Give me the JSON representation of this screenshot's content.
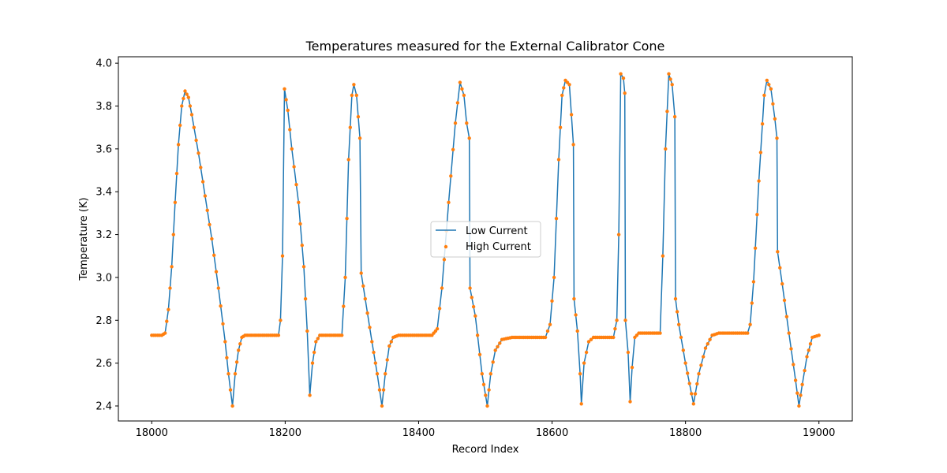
{
  "chart_data": {
    "type": "line",
    "title": "Temperatures measured for the External Calibrator Cone",
    "xlabel": "Record Index",
    "ylabel": "Temperature (K)",
    "xlim": [
      17950,
      19050
    ],
    "ylim": [
      2.33,
      4.03
    ],
    "xticks": [
      "18000",
      "18200",
      "18400",
      "18600",
      "18800",
      "19000"
    ],
    "yticks": [
      "2.4",
      "2.6",
      "2.8",
      "3.0",
      "3.2",
      "3.4",
      "3.6",
      "3.8",
      "4.0"
    ],
    "legend_position": "center",
    "grid": false,
    "series": [
      {
        "name": "Low Current",
        "style": "line",
        "color": "#1f77b4",
        "points": [
          [
            18000,
            2.73
          ],
          [
            18015,
            2.73
          ],
          [
            18020,
            2.74
          ],
          [
            18025,
            2.85
          ],
          [
            18030,
            3.05
          ],
          [
            18035,
            3.35
          ],
          [
            18040,
            3.62
          ],
          [
            18045,
            3.8
          ],
          [
            18050,
            3.87
          ],
          [
            18055,
            3.84
          ],
          [
            18060,
            3.76
          ],
          [
            18070,
            3.58
          ],
          [
            18080,
            3.38
          ],
          [
            18090,
            3.18
          ],
          [
            18100,
            2.95
          ],
          [
            18110,
            2.7
          ],
          [
            18115,
            2.55
          ],
          [
            18121,
            2.4
          ],
          [
            18125,
            2.55
          ],
          [
            18130,
            2.66
          ],
          [
            18135,
            2.72
          ],
          [
            18140,
            2.73
          ],
          [
            18190,
            2.73
          ],
          [
            18193,
            2.8
          ],
          [
            18196,
            3.1
          ],
          [
            18199,
            3.88
          ],
          [
            18204,
            3.78
          ],
          [
            18210,
            3.6
          ],
          [
            18220,
            3.35
          ],
          [
            18228,
            3.05
          ],
          [
            18233,
            2.75
          ],
          [
            18237,
            2.45
          ],
          [
            18241,
            2.6
          ],
          [
            18246,
            2.7
          ],
          [
            18252,
            2.73
          ],
          [
            18285,
            2.73
          ],
          [
            18290,
            3.0
          ],
          [
            18295,
            3.55
          ],
          [
            18300,
            3.85
          ],
          [
            18303,
            3.9
          ],
          [
            18307,
            3.85
          ],
          [
            18312,
            3.65
          ],
          [
            18314,
            3.02
          ],
          [
            18320,
            2.9
          ],
          [
            18330,
            2.7
          ],
          [
            18338,
            2.55
          ],
          [
            18345,
            2.4
          ],
          [
            18350,
            2.55
          ],
          [
            18356,
            2.68
          ],
          [
            18362,
            2.72
          ],
          [
            18370,
            2.73
          ],
          [
            18420,
            2.73
          ],
          [
            18428,
            2.76
          ],
          [
            18435,
            2.95
          ],
          [
            18445,
            3.35
          ],
          [
            18455,
            3.72
          ],
          [
            18462,
            3.91
          ],
          [
            18468,
            3.85
          ],
          [
            18472,
            3.72
          ],
          [
            18476,
            3.65
          ],
          [
            18477,
            2.95
          ],
          [
            18485,
            2.82
          ],
          [
            18495,
            2.55
          ],
          [
            18503,
            2.4
          ],
          [
            18508,
            2.55
          ],
          [
            18515,
            2.66
          ],
          [
            18525,
            2.71
          ],
          [
            18540,
            2.72
          ],
          [
            18590,
            2.72
          ],
          [
            18597,
            2.78
          ],
          [
            18603,
            3.0
          ],
          [
            18610,
            3.55
          ],
          [
            18615,
            3.85
          ],
          [
            18620,
            3.92
          ],
          [
            18626,
            3.9
          ],
          [
            18632,
            3.62
          ],
          [
            18633,
            2.9
          ],
          [
            18638,
            2.75
          ],
          [
            18642,
            2.55
          ],
          [
            18644,
            2.41
          ],
          [
            18648,
            2.6
          ],
          [
            18655,
            2.7
          ],
          [
            18662,
            2.72
          ],
          [
            18692,
            2.72
          ],
          [
            18697,
            2.8
          ],
          [
            18700,
            3.2
          ],
          [
            18703,
            3.95
          ],
          [
            18707,
            3.93
          ],
          [
            18709,
            3.86
          ],
          [
            18710,
            2.8
          ],
          [
            18714,
            2.65
          ],
          [
            18717,
            2.42
          ],
          [
            18720,
            2.58
          ],
          [
            18724,
            2.72
          ],
          [
            18730,
            2.74
          ],
          [
            18762,
            2.74
          ],
          [
            18766,
            3.1
          ],
          [
            18770,
            3.6
          ],
          [
            18775,
            3.95
          ],
          [
            18780,
            3.9
          ],
          [
            18784,
            3.75
          ],
          [
            18785,
            2.9
          ],
          [
            18790,
            2.78
          ],
          [
            18800,
            2.6
          ],
          [
            18812,
            2.41
          ],
          [
            18820,
            2.55
          ],
          [
            18830,
            2.67
          ],
          [
            18840,
            2.73
          ],
          [
            18850,
            2.74
          ],
          [
            18893,
            2.74
          ],
          [
            18897,
            2.78
          ],
          [
            18902,
            2.98
          ],
          [
            18910,
            3.45
          ],
          [
            18918,
            3.85
          ],
          [
            18922,
            3.92
          ],
          [
            18928,
            3.88
          ],
          [
            18934,
            3.74
          ],
          [
            18937,
            3.65
          ],
          [
            18938,
            3.12
          ],
          [
            18945,
            2.97
          ],
          [
            18955,
            2.74
          ],
          [
            18965,
            2.52
          ],
          [
            18970,
            2.4
          ],
          [
            18975,
            2.5
          ],
          [
            18982,
            2.63
          ],
          [
            18990,
            2.72
          ],
          [
            19000,
            2.73
          ]
        ]
      },
      {
        "name": "High Current",
        "style": "markers",
        "color": "#ff7f0e",
        "points": [
          [
            18000,
            2.73
          ],
          [
            18015,
            2.73
          ],
          [
            18020,
            2.74
          ],
          [
            18025,
            2.85
          ],
          [
            18030,
            3.05
          ],
          [
            18035,
            3.35
          ],
          [
            18040,
            3.62
          ],
          [
            18045,
            3.8
          ],
          [
            18050,
            3.87
          ],
          [
            18055,
            3.84
          ],
          [
            18060,
            3.76
          ],
          [
            18070,
            3.58
          ],
          [
            18080,
            3.38
          ],
          [
            18090,
            3.18
          ],
          [
            18100,
            2.95
          ],
          [
            18110,
            2.7
          ],
          [
            18115,
            2.55
          ],
          [
            18121,
            2.4
          ],
          [
            18125,
            2.55
          ],
          [
            18130,
            2.66
          ],
          [
            18135,
            2.72
          ],
          [
            18140,
            2.73
          ],
          [
            18190,
            2.73
          ],
          [
            18193,
            2.8
          ],
          [
            18196,
            3.1
          ],
          [
            18199,
            3.88
          ],
          [
            18204,
            3.78
          ],
          [
            18210,
            3.6
          ],
          [
            18220,
            3.35
          ],
          [
            18228,
            3.05
          ],
          [
            18233,
            2.75
          ],
          [
            18237,
            2.45
          ],
          [
            18241,
            2.6
          ],
          [
            18246,
            2.7
          ],
          [
            18252,
            2.73
          ],
          [
            18285,
            2.73
          ],
          [
            18290,
            3.0
          ],
          [
            18295,
            3.55
          ],
          [
            18300,
            3.85
          ],
          [
            18303,
            3.9
          ],
          [
            18307,
            3.85
          ],
          [
            18312,
            3.65
          ],
          [
            18314,
            3.02
          ],
          [
            18320,
            2.9
          ],
          [
            18330,
            2.7
          ],
          [
            18338,
            2.55
          ],
          [
            18345,
            2.4
          ],
          [
            18350,
            2.55
          ],
          [
            18356,
            2.68
          ],
          [
            18362,
            2.72
          ],
          [
            18370,
            2.73
          ],
          [
            18420,
            2.73
          ],
          [
            18428,
            2.76
          ],
          [
            18435,
            2.95
          ],
          [
            18445,
            3.35
          ],
          [
            18455,
            3.72
          ],
          [
            18462,
            3.91
          ],
          [
            18468,
            3.85
          ],
          [
            18472,
            3.72
          ],
          [
            18476,
            3.65
          ],
          [
            18477,
            2.95
          ],
          [
            18485,
            2.82
          ],
          [
            18495,
            2.55
          ],
          [
            18503,
            2.4
          ],
          [
            18508,
            2.55
          ],
          [
            18515,
            2.66
          ],
          [
            18525,
            2.71
          ],
          [
            18540,
            2.72
          ],
          [
            18590,
            2.72
          ],
          [
            18597,
            2.78
          ],
          [
            18603,
            3.0
          ],
          [
            18610,
            3.55
          ],
          [
            18615,
            3.85
          ],
          [
            18620,
            3.92
          ],
          [
            18626,
            3.9
          ],
          [
            18632,
            3.62
          ],
          [
            18633,
            2.9
          ],
          [
            18638,
            2.75
          ],
          [
            18642,
            2.55
          ],
          [
            18644,
            2.41
          ],
          [
            18648,
            2.6
          ],
          [
            18655,
            2.7
          ],
          [
            18662,
            2.72
          ],
          [
            18692,
            2.72
          ],
          [
            18697,
            2.8
          ],
          [
            18700,
            3.2
          ],
          [
            18703,
            3.95
          ],
          [
            18707,
            3.93
          ],
          [
            18709,
            3.86
          ],
          [
            18710,
            2.8
          ],
          [
            18714,
            2.65
          ],
          [
            18717,
            2.42
          ],
          [
            18720,
            2.58
          ],
          [
            18724,
            2.72
          ],
          [
            18730,
            2.74
          ],
          [
            18762,
            2.74
          ],
          [
            18766,
            3.1
          ],
          [
            18770,
            3.6
          ],
          [
            18775,
            3.95
          ],
          [
            18780,
            3.9
          ],
          [
            18784,
            3.75
          ],
          [
            18785,
            2.9
          ],
          [
            18790,
            2.78
          ],
          [
            18800,
            2.6
          ],
          [
            18812,
            2.41
          ],
          [
            18820,
            2.55
          ],
          [
            18830,
            2.67
          ],
          [
            18840,
            2.73
          ],
          [
            18850,
            2.74
          ],
          [
            18893,
            2.74
          ],
          [
            18897,
            2.78
          ],
          [
            18902,
            2.98
          ],
          [
            18910,
            3.45
          ],
          [
            18918,
            3.85
          ],
          [
            18922,
            3.92
          ],
          [
            18928,
            3.88
          ],
          [
            18934,
            3.74
          ],
          [
            18937,
            3.65
          ],
          [
            18938,
            3.12
          ],
          [
            18945,
            2.97
          ],
          [
            18955,
            2.74
          ],
          [
            18965,
            2.52
          ],
          [
            18970,
            2.4
          ],
          [
            18975,
            2.5
          ],
          [
            18982,
            2.63
          ],
          [
            18990,
            2.72
          ],
          [
            19000,
            2.73
          ]
        ]
      }
    ]
  }
}
